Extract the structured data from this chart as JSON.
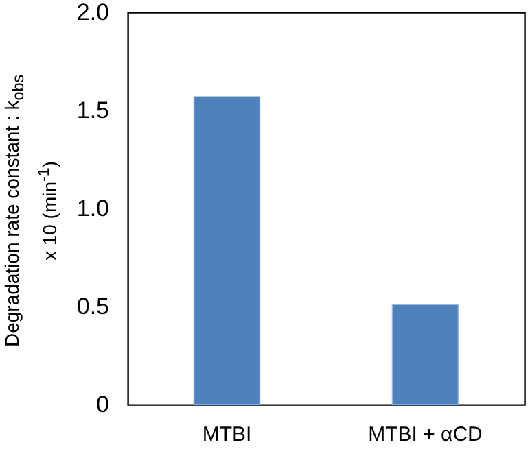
{
  "chart_data": {
    "type": "bar",
    "ylabel": "Degradation rate constant : k$_{obs}$ x 10 (min$^{-1}$)",
    "categories": [
      "MTBI",
      "MTBI + αCD"
    ],
    "values": [
      1.57,
      0.51
    ],
    "color": "#4f81bd",
    "ylim": [
      0,
      2.0
    ],
    "yticks": [
      0,
      0.5,
      {
        "value": 1,
        "label": "1.0"
      },
      1.5,
      {
        "value": 2,
        "label": "2.0"
      }
    ],
    "grid": false
  }
}
